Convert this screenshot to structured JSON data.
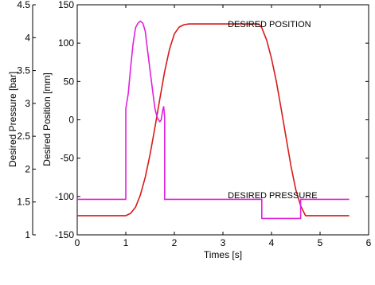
{
  "chart_data": {
    "type": "line",
    "xlabel": "Times [s]",
    "ylabel_left_outer": "Desired Pressure [bar]",
    "ylabel_left_inner": "Desired Position [mm]",
    "xlim": [
      0,
      6
    ],
    "ylim_pressure": [
      1,
      4.5
    ],
    "ylim_position": [
      -150,
      150
    ],
    "x_ticks": [
      "0",
      "1",
      "2",
      "3",
      "4",
      "5",
      "6"
    ],
    "pressure_ticks": [
      "1",
      "1.5",
      "2",
      "2.5",
      "3",
      "3.5",
      "4",
      "4.5"
    ],
    "position_ticks": [
      "-150",
      "-100",
      "-50",
      "0",
      "50",
      "100",
      "150"
    ],
    "grid": false,
    "annotations": [
      {
        "text": "DESIRED POSITION",
        "series": "position",
        "x": 3.1,
        "y": 121
      },
      {
        "text": "DESIRED PRESSURE",
        "series": "pressure",
        "x": 3.1,
        "y": 1.56
      }
    ],
    "series": [
      {
        "color": "#d81b1b",
        "axis": "position",
        "x": [
          0,
          1.0,
          1.1,
          1.2,
          1.3,
          1.4,
          1.5,
          1.6,
          1.7,
          1.8,
          1.9,
          2.0,
          2.1,
          2.2,
          2.3,
          3.7,
          3.75,
          3.8,
          3.9,
          4.0,
          4.1,
          4.2,
          4.3,
          4.4,
          4.5,
          4.6,
          4.7,
          5.6
        ],
        "y": [
          -125,
          -125,
          -122,
          -114,
          -98,
          -75,
          -45,
          -10,
          27,
          63,
          92,
          112,
          121,
          124,
          125,
          125,
          124,
          120,
          104,
          80,
          50,
          14,
          -23,
          -60,
          -91,
          -112,
          -125,
          -125
        ]
      },
      {
        "color": "#e020e0",
        "axis": "pressure",
        "x": [
          0,
          1.0,
          1.0,
          1.05,
          1.1,
          1.15,
          1.2,
          1.25,
          1.3,
          1.35,
          1.4,
          1.45,
          1.5,
          1.55,
          1.6,
          1.65,
          1.7,
          1.73,
          1.76,
          1.78,
          1.8,
          1.8,
          3.8,
          3.8,
          4.6,
          4.6,
          5.6
        ],
        "y": [
          1.54,
          1.54,
          2.92,
          3.15,
          3.55,
          3.9,
          4.15,
          4.22,
          4.25,
          4.22,
          4.1,
          3.8,
          3.5,
          3.2,
          2.92,
          2.78,
          2.72,
          2.75,
          2.9,
          2.95,
          2.8,
          1.54,
          1.54,
          1.25,
          1.25,
          1.54,
          1.54
        ]
      }
    ]
  }
}
